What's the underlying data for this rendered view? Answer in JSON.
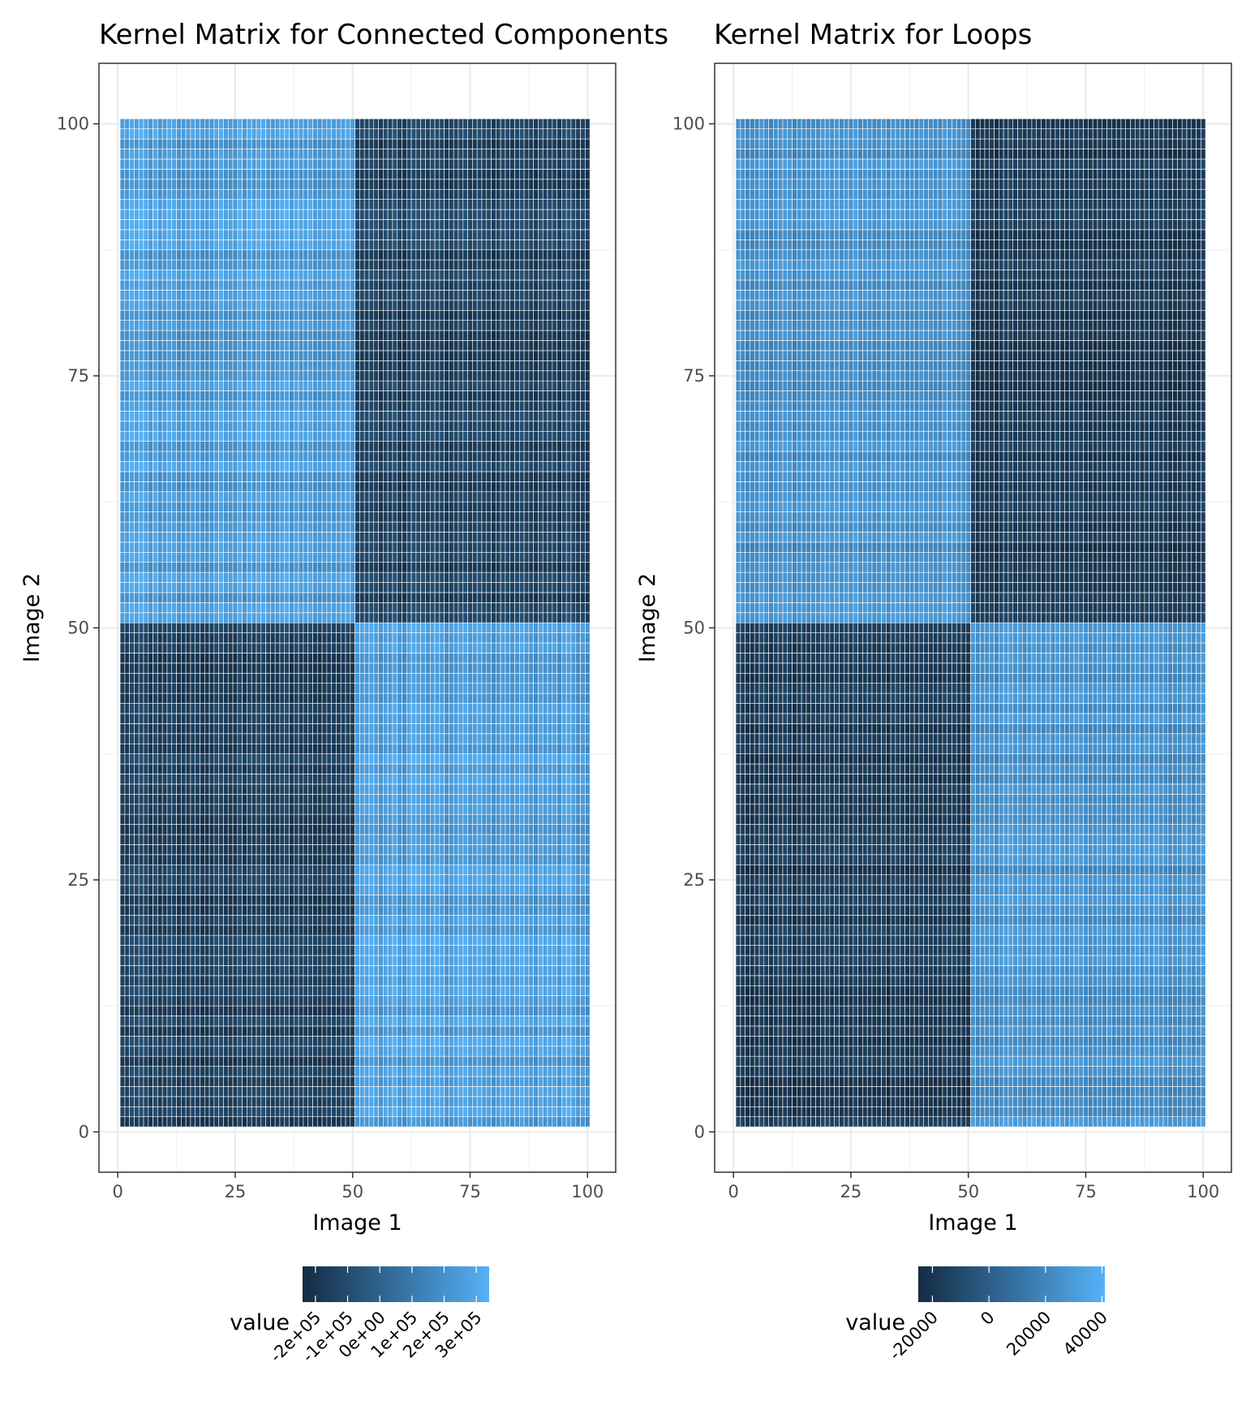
{
  "chart_data": [
    {
      "type": "heatmap",
      "title": "Kernel Matrix for Connected Components",
      "xlabel": "Image 1",
      "ylabel": "Image 2",
      "xlim": [
        -4,
        106
      ],
      "ylim": [
        -4,
        106
      ],
      "x_ticks": [
        0,
        25,
        50,
        75,
        100
      ],
      "y_ticks": [
        0,
        25,
        50,
        75,
        100
      ],
      "x_tick_labels": [
        "0",
        "25",
        "50",
        "75",
        "100"
      ],
      "y_tick_labels": [
        "0",
        "25",
        "50",
        "75",
        "100"
      ],
      "grid": true,
      "n_rows": 100,
      "n_cols": 100,
      "cell_border_color": "#ffffff",
      "block_structure": {
        "split_at": 50,
        "same_group_value": -150000,
        "cross_group_value": 250000,
        "variation_amplitude": 90000
      },
      "value_range": [
        -240000,
        340000
      ],
      "colorscale": {
        "low": "#132B43",
        "high": "#56B1F7"
      },
      "legend": {
        "title": "value",
        "position": "bottom",
        "breaks": [
          -200000,
          -100000,
          0,
          100000,
          200000,
          300000
        ],
        "labels": [
          "-2e+05",
          "-1e+05",
          "0e+00",
          "1e+05",
          "2e+05",
          "3e+05"
        ]
      }
    },
    {
      "type": "heatmap",
      "title": "Kernel Matrix for Loops",
      "xlabel": "Image 1",
      "ylabel": "Image 2",
      "xlim": [
        -4,
        106
      ],
      "ylim": [
        -4,
        106
      ],
      "x_ticks": [
        0,
        25,
        50,
        75,
        100
      ],
      "y_ticks": [
        0,
        25,
        50,
        75,
        100
      ],
      "x_tick_labels": [
        "0",
        "25",
        "50",
        "75",
        "100"
      ],
      "y_tick_labels": [
        "0",
        "25",
        "50",
        "75",
        "100"
      ],
      "grid": true,
      "n_rows": 100,
      "n_cols": 100,
      "cell_border_color": "#ffffff",
      "block_structure": {
        "split_at": 50,
        "same_group_value": -18000,
        "cross_group_value": 25000,
        "variation_amplitude": 9000
      },
      "value_range": [
        -25000,
        41000
      ],
      "colorscale": {
        "low": "#132B43",
        "high": "#56B1F7"
      },
      "legend": {
        "title": "value",
        "position": "bottom",
        "breaks": [
          -20000,
          0,
          20000,
          40000
        ],
        "labels": [
          "-20000",
          "0",
          "20000",
          "40000"
        ]
      }
    }
  ]
}
